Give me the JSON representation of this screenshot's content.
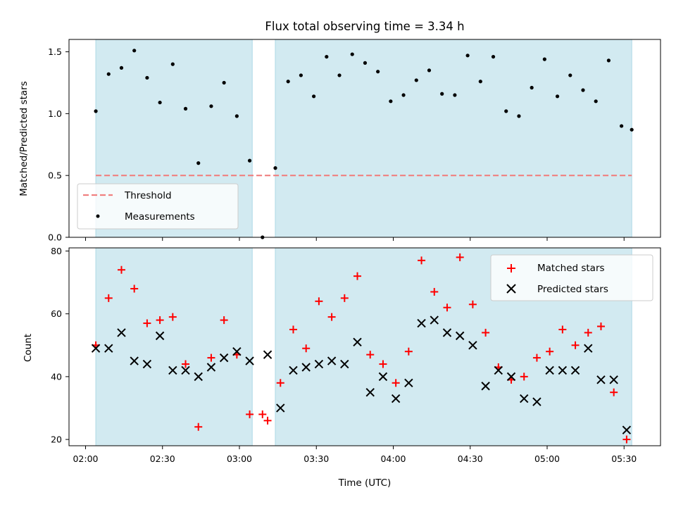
{
  "chart_data": {
    "type": "scatter",
    "title": "Flux total observing time = 3.34 h",
    "xlabel": "Time (UTC)",
    "x_ticks": [
      "02:00",
      "02:30",
      "03:00",
      "03:30",
      "04:00",
      "04:30",
      "05:00",
      "05:30"
    ],
    "shaded_intervals": [
      [
        "02:04",
        "03:05"
      ],
      [
        "03:14",
        "05:33"
      ]
    ],
    "shade_color": "#add8e6",
    "panels": [
      {
        "ylabel": "Matched/Predicted stars",
        "ylim": [
          0,
          1.6
        ],
        "y_ticks": [
          "0.0",
          "0.5",
          "1.0",
          "1.5"
        ],
        "legend_position": "lower-left",
        "threshold": {
          "name": "Threshold",
          "value": 0.5,
          "x_range": [
            "02:04",
            "05:33"
          ],
          "color": "#f08080"
        },
        "series": [
          {
            "name": "Measurements",
            "color": "#000000",
            "marker": "dot",
            "points": [
              [
                "02:04",
                1.02
              ],
              [
                "02:09",
                1.32
              ],
              [
                "02:14",
                1.37
              ],
              [
                "02:19",
                1.51
              ],
              [
                "02:24",
                1.29
              ],
              [
                "02:29",
                1.09
              ],
              [
                "02:34",
                1.4
              ],
              [
                "02:39",
                1.04
              ],
              [
                "02:44",
                0.6
              ],
              [
                "02:49",
                1.06
              ],
              [
                "02:54",
                1.25
              ],
              [
                "02:59",
                0.98
              ],
              [
                "03:04",
                0.62
              ],
              [
                "03:09",
                0.0
              ],
              [
                "03:14",
                0.56
              ],
              [
                "03:19",
                1.26
              ],
              [
                "03:24",
                1.31
              ],
              [
                "03:29",
                1.14
              ],
              [
                "03:34",
                1.46
              ],
              [
                "03:39",
                1.31
              ],
              [
                "03:44",
                1.48
              ],
              [
                "03:49",
                1.41
              ],
              [
                "03:54",
                1.34
              ],
              [
                "03:59",
                1.1
              ],
              [
                "04:04",
                1.15
              ],
              [
                "04:09",
                1.27
              ],
              [
                "04:14",
                1.35
              ],
              [
                "04:19",
                1.16
              ],
              [
                "04:24",
                1.15
              ],
              [
                "04:29",
                1.47
              ],
              [
                "04:34",
                1.26
              ],
              [
                "04:39",
                1.46
              ],
              [
                "04:44",
                1.02
              ],
              [
                "04:49",
                0.98
              ],
              [
                "04:54",
                1.21
              ],
              [
                "04:59",
                1.44
              ],
              [
                "05:04",
                1.14
              ],
              [
                "05:09",
                1.31
              ],
              [
                "05:14",
                1.19
              ],
              [
                "05:19",
                1.1
              ],
              [
                "05:24",
                1.43
              ],
              [
                "05:29",
                0.9
              ],
              [
                "05:33",
                0.87
              ]
            ]
          }
        ]
      },
      {
        "ylabel": "Count",
        "ylim": [
          18,
          81
        ],
        "y_ticks": [
          "20",
          "40",
          "60",
          "80"
        ],
        "legend_position": "upper-right",
        "series": [
          {
            "name": "Matched stars",
            "color": "#ff0000",
            "marker": "plus",
            "points": [
              [
                "02:04",
                50
              ],
              [
                "02:09",
                65
              ],
              [
                "02:14",
                74
              ],
              [
                "02:19",
                68
              ],
              [
                "02:24",
                57
              ],
              [
                "02:29",
                58
              ],
              [
                "02:34",
                59
              ],
              [
                "02:39",
                44
              ],
              [
                "02:44",
                24
              ],
              [
                "02:49",
                46
              ],
              [
                "02:54",
                58
              ],
              [
                "02:59",
                47
              ],
              [
                "03:04",
                28
              ],
              [
                "03:09",
                28
              ],
              [
                "03:11",
                26
              ],
              [
                "03:16",
                38
              ],
              [
                "03:21",
                55
              ],
              [
                "03:26",
                49
              ],
              [
                "03:31",
                64
              ],
              [
                "03:36",
                59
              ],
              [
                "03:41",
                65
              ],
              [
                "03:46",
                72
              ],
              [
                "03:51",
                47
              ],
              [
                "03:56",
                44
              ],
              [
                "04:01",
                38
              ],
              [
                "04:06",
                48
              ],
              [
                "04:11",
                77
              ],
              [
                "04:16",
                67
              ],
              [
                "04:21",
                62
              ],
              [
                "04:26",
                78
              ],
              [
                "04:31",
                63
              ],
              [
                "04:36",
                54
              ],
              [
                "04:41",
                43
              ],
              [
                "04:46",
                39
              ],
              [
                "04:51",
                40
              ],
              [
                "04:56",
                46
              ],
              [
                "05:01",
                48
              ],
              [
                "05:06",
                55
              ],
              [
                "05:11",
                50
              ],
              [
                "05:16",
                54
              ],
              [
                "05:21",
                56
              ],
              [
                "05:26",
                35
              ],
              [
                "05:31",
                20
              ]
            ]
          },
          {
            "name": "Predicted stars",
            "color": "#000000",
            "marker": "x",
            "points": [
              [
                "02:04",
                49
              ],
              [
                "02:09",
                49
              ],
              [
                "02:14",
                54
              ],
              [
                "02:19",
                45
              ],
              [
                "02:24",
                44
              ],
              [
                "02:29",
                53
              ],
              [
                "02:34",
                42
              ],
              [
                "02:39",
                42
              ],
              [
                "02:44",
                40
              ],
              [
                "02:49",
                43
              ],
              [
                "02:54",
                46
              ],
              [
                "02:59",
                48
              ],
              [
                "03:04",
                45
              ],
              [
                "03:11",
                47
              ],
              [
                "03:16",
                30
              ],
              [
                "03:21",
                42
              ],
              [
                "03:26",
                43
              ],
              [
                "03:31",
                44
              ],
              [
                "03:36",
                45
              ],
              [
                "03:41",
                44
              ],
              [
                "03:46",
                51
              ],
              [
                "03:51",
                35
              ],
              [
                "03:56",
                40
              ],
              [
                "04:01",
                33
              ],
              [
                "04:06",
                38
              ],
              [
                "04:11",
                57
              ],
              [
                "04:16",
                58
              ],
              [
                "04:21",
                54
              ],
              [
                "04:26",
                53
              ],
              [
                "04:31",
                50
              ],
              [
                "04:36",
                37
              ],
              [
                "04:41",
                42
              ],
              [
                "04:46",
                40
              ],
              [
                "04:51",
                33
              ],
              [
                "04:56",
                32
              ],
              [
                "05:01",
                42
              ],
              [
                "05:06",
                42
              ],
              [
                "05:11",
                42
              ],
              [
                "05:16",
                49
              ],
              [
                "05:21",
                39
              ],
              [
                "05:26",
                39
              ],
              [
                "05:31",
                23
              ]
            ]
          }
        ]
      }
    ]
  }
}
